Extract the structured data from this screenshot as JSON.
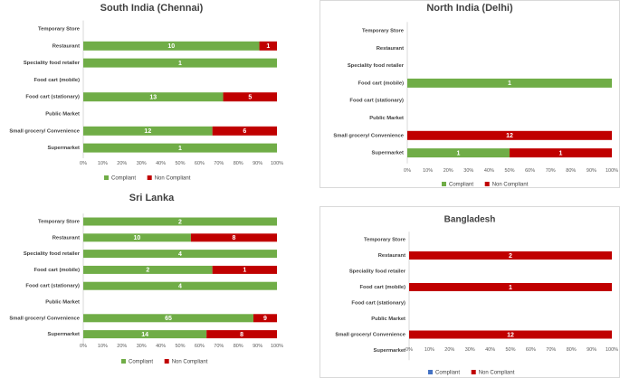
{
  "chart_data": [
    {
      "type": "bar",
      "stacked": "percent",
      "orientation": "horizontal",
      "title": "South India (Chennai)",
      "categories": [
        "Temporary Store",
        "Restaurant",
        "Speciality food retailer",
        "Food cart (mobile)",
        "Food cart (stationary)",
        "Public Market",
        "Small grocery/ Convenience",
        "Supermarket"
      ],
      "series": [
        {
          "name": "Compliant",
          "color": "#70ad47",
          "values": [
            0,
            10,
            1,
            0,
            13,
            0,
            12,
            1
          ]
        },
        {
          "name": "Non Compliant",
          "color": "#c00000",
          "values": [
            0,
            1,
            0,
            0,
            5,
            0,
            6,
            0
          ]
        }
      ],
      "xticks": [
        "0%",
        "10%",
        "20%",
        "30%",
        "40%",
        "50%",
        "60%",
        "70%",
        "80%",
        "90%",
        "100%"
      ],
      "xlim": [
        0,
        100
      ],
      "legend": "bottom"
    },
    {
      "type": "bar",
      "stacked": "percent",
      "orientation": "horizontal",
      "title": "North India (Delhi)",
      "categories": [
        "Temporary Store",
        "Restaurant",
        "Speciality food retailer",
        "Food cart (mobile)",
        "Food cart (stationary)",
        "Public Market",
        "Small grocery/ Convenience",
        "Supermarket"
      ],
      "series": [
        {
          "name": "Compliant",
          "color": "#70ad47",
          "values": [
            0,
            0,
            0,
            1,
            0,
            0,
            0,
            1
          ]
        },
        {
          "name": "Non Compliant",
          "color": "#c00000",
          "values": [
            0,
            0,
            0,
            0,
            0,
            0,
            12,
            1
          ]
        }
      ],
      "xticks": [
        "0%",
        "10%",
        "20%",
        "30%",
        "40%",
        "50%",
        "60%",
        "70%",
        "80%",
        "90%",
        "100%"
      ],
      "xlim": [
        0,
        100
      ],
      "legend": "bottom"
    },
    {
      "type": "bar",
      "stacked": "percent",
      "orientation": "horizontal",
      "title": "Sri Lanka",
      "categories": [
        "Temporary Store",
        "Restaurant",
        "Speciality food retailer",
        "Food cart (mobile)",
        "Food cart (stationary)",
        "Public Market",
        "Small grocery/ Convenience",
        "Supermarket"
      ],
      "series": [
        {
          "name": "Compliant",
          "color": "#70ad47",
          "values": [
            2,
            10,
            4,
            2,
            4,
            0,
            65,
            14
          ]
        },
        {
          "name": "Non Compliant",
          "color": "#c00000",
          "values": [
            0,
            8,
            0,
            1,
            0,
            0,
            9,
            8
          ]
        }
      ],
      "xticks": [
        "0%",
        "10%",
        "20%",
        "30%",
        "40%",
        "50%",
        "60%",
        "70%",
        "80%",
        "90%",
        "100%"
      ],
      "xlim": [
        0,
        100
      ],
      "legend": "bottom"
    },
    {
      "type": "bar",
      "stacked": "percent",
      "orientation": "horizontal",
      "title": "Bangladesh",
      "categories": [
        "Temporary Store",
        "Restaurant",
        "Speciality food retailer",
        "Food cart (mobile)",
        "Food cart (stationary)",
        "Public Market",
        "Small grocery/ Convenience",
        "Supermarket"
      ],
      "series": [
        {
          "name": "Compliant",
          "color": "#4472c4",
          "values": [
            0,
            0,
            0,
            0,
            0,
            0,
            0,
            0
          ]
        },
        {
          "name": "Non Compliant",
          "color": "#c00000",
          "values": [
            0,
            2,
            0,
            1,
            0,
            0,
            12,
            0
          ]
        }
      ],
      "xticks": [
        "0%",
        "10%",
        "20%",
        "30%",
        "40%",
        "50%",
        "60%",
        "70%",
        "80%",
        "90%",
        "100%"
      ],
      "xlim": [
        0,
        100
      ],
      "legend": "bottom"
    }
  ]
}
